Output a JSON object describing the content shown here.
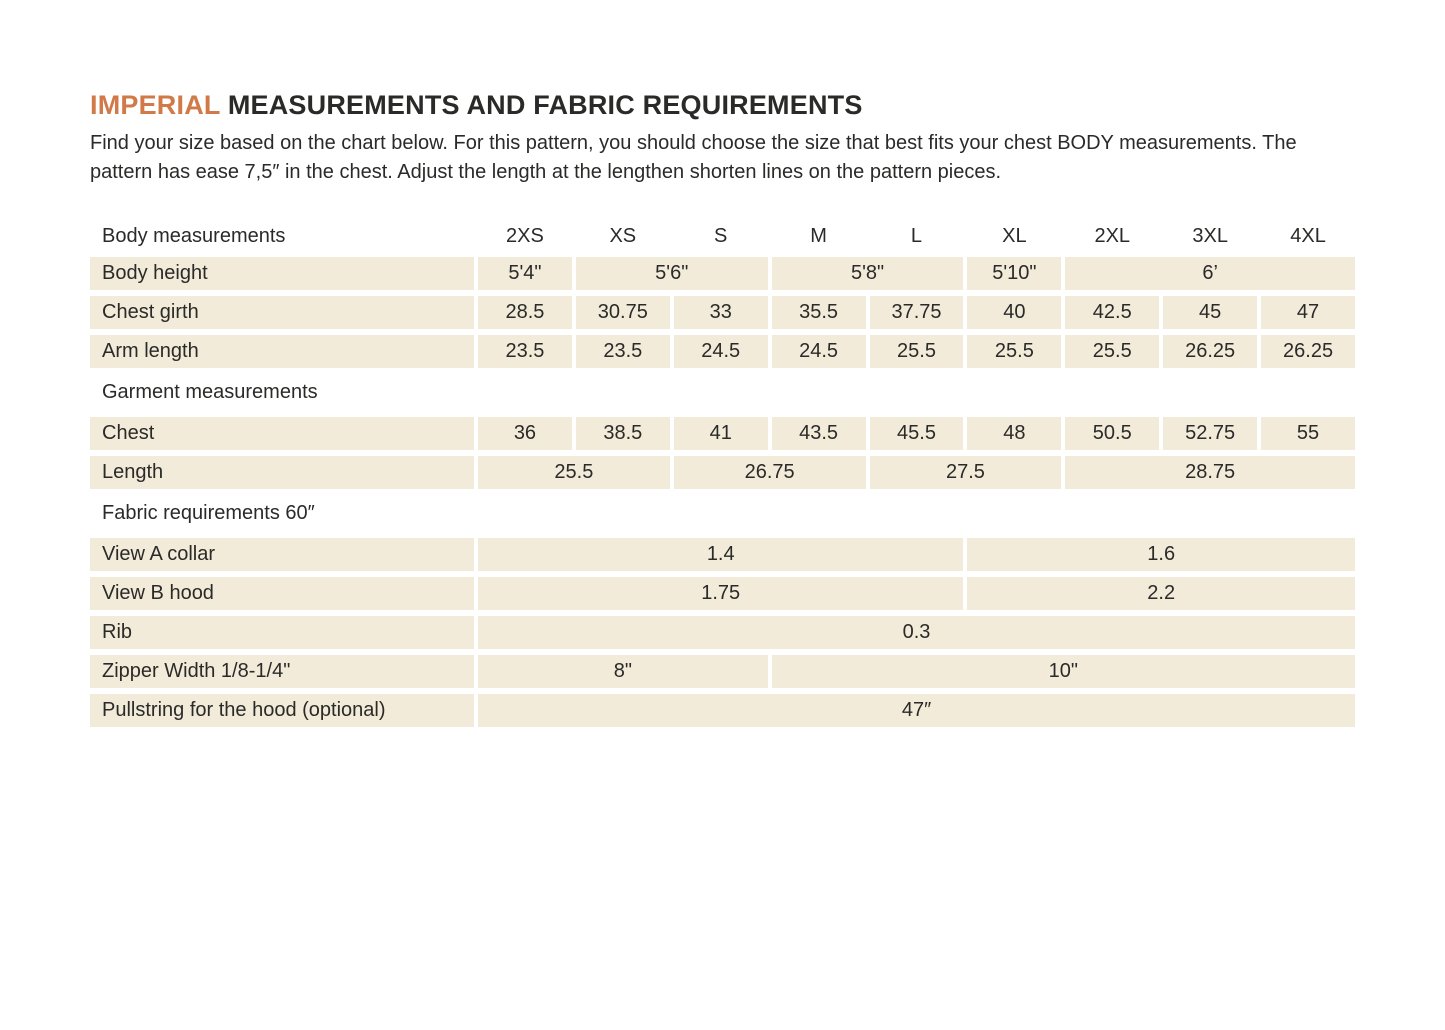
{
  "colors": {
    "accent_orange": "#d17a48",
    "cell_beige": "#f2ebd9",
    "text_dark": "#2a2a28"
  },
  "header": {
    "title_accent": "IMPERIAL",
    "title_rest": " MEASUREMENTS AND FABRIC REQUIREMENTS",
    "intro": "Find your size based on the chart below. For this pattern, you should choose the size that best fits your chest BODY measurements. The pattern has ease 7,5″ in the chest.  Adjust the length at the lengthen shorten lines on the pattern pieces."
  },
  "table": {
    "header": {
      "label": "Body measurements",
      "sizes": [
        "2XS",
        "XS",
        "S",
        "M",
        "L",
        "XL",
        "2XL",
        "3XL",
        "4XL"
      ]
    },
    "rows": [
      {
        "label": "Body height",
        "cells": [
          "5'4\"",
          "5'6\"",
          "5'8\"",
          "5'10\"",
          "6’"
        ]
      },
      {
        "label": "Chest girth",
        "cells": [
          "28.5",
          "30.75",
          "33",
          "35.5",
          "37.75",
          "40",
          "42.5",
          "45",
          "47"
        ]
      },
      {
        "label": "Arm length",
        "cells": [
          "23.5",
          "23.5",
          "24.5",
          "24.5",
          "25.5",
          "25.5",
          "25.5",
          "26.25",
          "26.25"
        ]
      },
      {
        "label": "Garment measurements"
      },
      {
        "label": "Chest",
        "cells": [
          "36",
          "38.5",
          "41",
          "43.5",
          "45.5",
          "48",
          "50.5",
          "52.75",
          "55"
        ]
      },
      {
        "label": "Length",
        "cells": [
          "25.5",
          "26.75",
          "27.5",
          "28.75"
        ]
      },
      {
        "label": "Fabric requirements 60″"
      },
      {
        "label": "View A collar",
        "cells": [
          "1.4",
          "1.6"
        ]
      },
      {
        "label": "View B hood",
        "cells": [
          "1.75",
          "2.2"
        ]
      },
      {
        "label": "Rib",
        "cells": [
          "0.3"
        ]
      },
      {
        "label": "Zipper Width 1/8-1/4\"",
        "cells": [
          "8\"",
          "10\""
        ]
      },
      {
        "label": "Pullstring for the hood (optional)",
        "cells": [
          "47″"
        ]
      }
    ]
  }
}
